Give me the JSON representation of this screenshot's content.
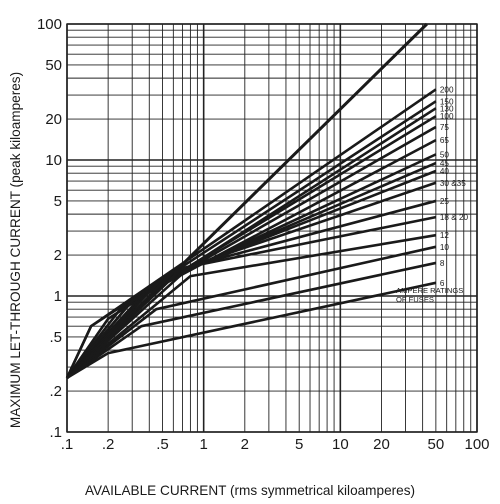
{
  "chart_data": {
    "type": "line",
    "xlabel": "AVAILABLE CURRENT (rms symmetrical kiloamperes)",
    "ylabel": "MAXIMUM LET-THROUGH CURRENT (peak kiloamperes)",
    "x_scale": "log",
    "y_scale": "log",
    "xlim": [
      0.1,
      100
    ],
    "ylim": [
      0.1,
      100
    ],
    "x_ticks": [
      0.1,
      0.2,
      0.5,
      1,
      2,
      5,
      10,
      20,
      50,
      100
    ],
    "x_tick_labels": [
      ".1",
      ".2",
      ".5",
      "1",
      "2",
      "5",
      "10",
      "20",
      "50",
      "100"
    ],
    "y_ticks": [
      0.1,
      0.2,
      0.5,
      1,
      2,
      5,
      10,
      20,
      50,
      100
    ],
    "y_tick_labels": [
      ".1",
      ".2",
      ".5",
      "1",
      "2",
      "5",
      "10",
      "20",
      "50",
      "100"
    ],
    "grid": true,
    "series_label_title": [
      "AMPERE RATINGS",
      "OF FUSES"
    ],
    "max_peak_line": {
      "x": [
        0.1,
        43
      ],
      "y": [
        0.25,
        100
      ]
    },
    "series": [
      {
        "name": "200",
        "x": [
          0.1,
          0.15,
          50
        ],
        "y": [
          0.25,
          0.6,
          33.0
        ]
      },
      {
        "name": "150",
        "x": [
          0.1,
          0.15,
          50
        ],
        "y": [
          0.25,
          0.6,
          27.0
        ]
      },
      {
        "name": "130",
        "x": [
          0.1,
          0.2,
          50
        ],
        "y": [
          0.25,
          0.68,
          24.0
        ]
      },
      {
        "name": "100",
        "x": [
          0.1,
          0.25,
          50
        ],
        "y": [
          0.25,
          0.82,
          21.0
        ]
      },
      {
        "name": "75",
        "x": [
          0.1,
          0.3,
          50
        ],
        "y": [
          0.25,
          0.92,
          17.5
        ]
      },
      {
        "name": "65",
        "x": [
          0.1,
          0.3,
          50
        ],
        "y": [
          0.25,
          0.92,
          14.0
        ]
      },
      {
        "name": "50",
        "x": [
          0.1,
          0.4,
          50
        ],
        "y": [
          0.25,
          1.15,
          11.0
        ]
      },
      {
        "name": "45",
        "x": [
          0.1,
          0.45,
          50
        ],
        "y": [
          0.25,
          1.25,
          9.5
        ]
      },
      {
        "name": "40",
        "x": [
          0.1,
          0.5,
          50
        ],
        "y": [
          0.25,
          1.35,
          8.3
        ]
      },
      {
        "name": "30 &35",
        "x": [
          0.1,
          0.6,
          50
        ],
        "y": [
          0.25,
          1.5,
          6.8
        ]
      },
      {
        "name": "25",
        "x": [
          0.1,
          0.7,
          50
        ],
        "y": [
          0.25,
          1.6,
          5.0
        ]
      },
      {
        "name": "18 & 20",
        "x": [
          0.1,
          0.8,
          50
        ],
        "y": [
          0.25,
          1.65,
          3.8
        ]
      },
      {
        "name": "12",
        "x": [
          0.1,
          0.8,
          50
        ],
        "y": [
          0.25,
          1.4,
          2.8
        ]
      },
      {
        "name": "10",
        "x": [
          0.1,
          0.45,
          50
        ],
        "y": [
          0.25,
          0.8,
          2.3
        ]
      },
      {
        "name": "8",
        "x": [
          0.1,
          0.35,
          50
        ],
        "y": [
          0.25,
          0.6,
          1.75
        ]
      },
      {
        "name": "6",
        "x": [
          0.1,
          0.2,
          50
        ],
        "y": [
          0.25,
          0.38,
          1.25
        ]
      }
    ]
  }
}
